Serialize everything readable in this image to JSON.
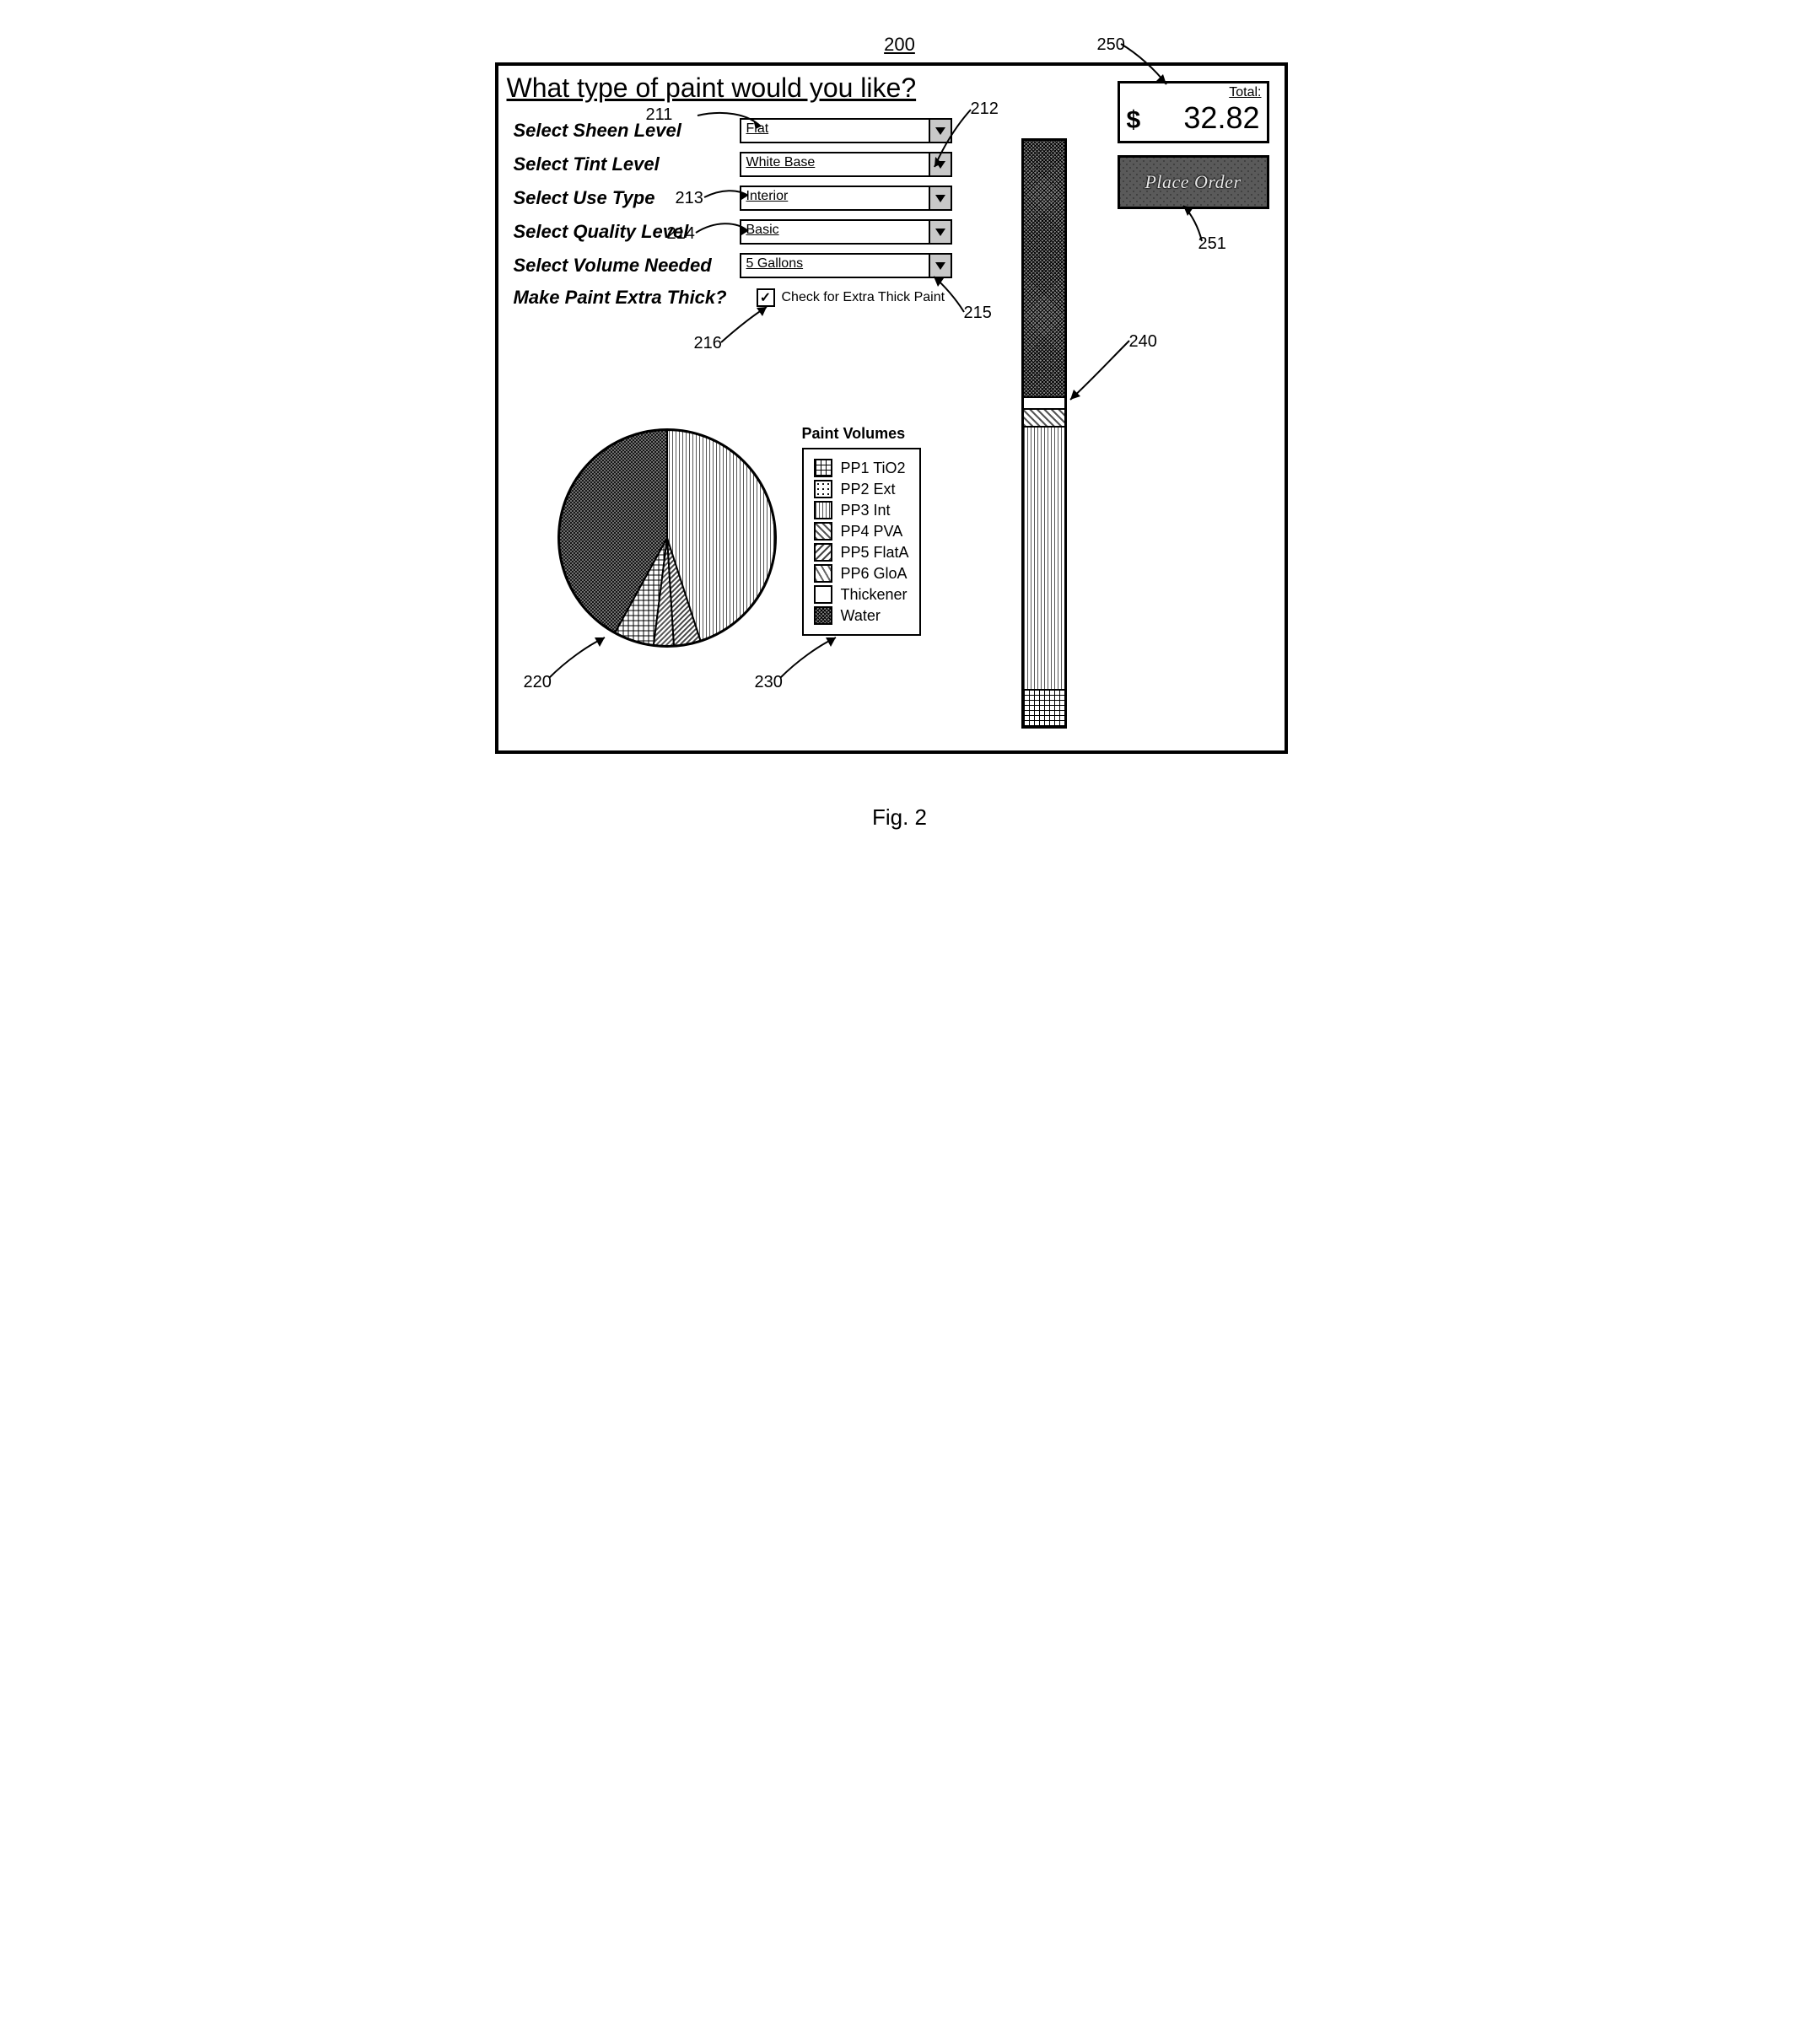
{
  "figure": {
    "ref_top": "200",
    "caption": "Fig. 2"
  },
  "title": "What type of paint would you like?",
  "form": {
    "sheen": {
      "label": "Select Sheen Level",
      "value": "Flat",
      "ref": "211"
    },
    "tint": {
      "label": "Select Tint Level",
      "value": "White Base",
      "ref": "212"
    },
    "use": {
      "label": "Select Use Type",
      "value": "Interior",
      "ref": "214"
    },
    "quality": {
      "label": "Select Quality Level",
      "value": "Basic"
    },
    "volume": {
      "label": "Select Volume Needed",
      "value": "5 Gallons",
      "ref": "215"
    },
    "thick": {
      "label": "Make Paint Extra Thick?",
      "checkbox_label": "Check for Extra Thick Paint",
      "checked": true,
      "ref": "216"
    },
    "ref_213": "213"
  },
  "total": {
    "label": "Total:",
    "currency": "$",
    "amount": "32.82",
    "ref": "250"
  },
  "place_order": {
    "label": "Place Order",
    "ref": "251"
  },
  "legend": {
    "title": "Paint Volumes",
    "ref": "230",
    "items": [
      {
        "label": "PP1 TiO2",
        "pattern": "pat-crosshatch"
      },
      {
        "label": "PP2 Ext",
        "pattern": "pat-dots"
      },
      {
        "label": "PP3 Int",
        "pattern": "pat-vlines"
      },
      {
        "label": "PP4 PVA",
        "pattern": "pat-diag1"
      },
      {
        "label": "PP5 FlatA",
        "pattern": "pat-diag2"
      },
      {
        "label": "PP6 GloA",
        "pattern": "pat-diag3"
      },
      {
        "label": "Thickener",
        "pattern": "pat-white"
      },
      {
        "label": "Water",
        "pattern": "pat-densecross"
      }
    ]
  },
  "pie": {
    "ref": "220",
    "slices": [
      {
        "label": "Water",
        "value": 42,
        "pattern": "pat-densecross"
      },
      {
        "label": "PP1 TiO2",
        "value": 6,
        "pattern": "pat-crosshatch"
      },
      {
        "label": "PP4 PVA",
        "value": 3,
        "pattern": "pat-diag1"
      },
      {
        "label": "PP5 FlatA",
        "value": 4,
        "pattern": "pat-diag2"
      },
      {
        "label": "PP3 Int",
        "value": 45,
        "pattern": "pat-vlines"
      }
    ]
  },
  "bar": {
    "ref": "240",
    "segments": [
      {
        "label": "PP1 TiO2",
        "value": 6,
        "pattern": "pat-crosshatch"
      },
      {
        "label": "PP3 Int",
        "value": 45,
        "pattern": "pat-vlines"
      },
      {
        "label": "PP4 PVA",
        "value": 3,
        "pattern": "pat-diag1"
      },
      {
        "label": "Thickener",
        "value": 2,
        "pattern": "pat-white"
      },
      {
        "label": "Water",
        "value": 44,
        "pattern": "pat-densecross"
      }
    ]
  }
}
